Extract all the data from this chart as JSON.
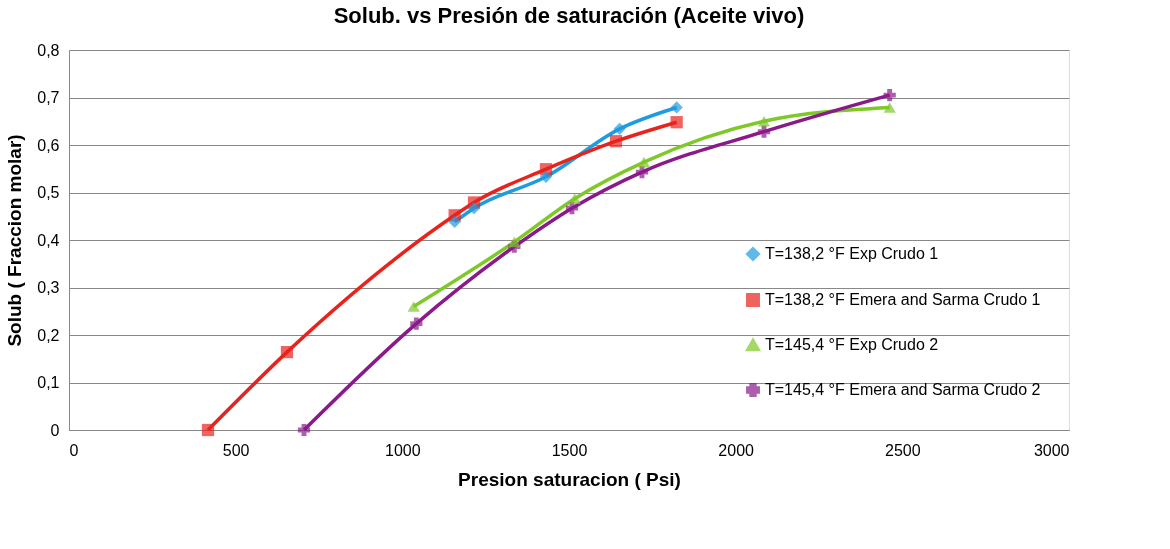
{
  "chart_data": {
    "type": "line",
    "title": "Solub. vs Presión de saturación (Aceite vivo)",
    "xlabel": "Presion  saturacion ( Psi)",
    "ylabel": "Solub ( Fraccion molar)",
    "xlim": [
      0,
      3000
    ],
    "xticks": [
      0,
      500,
      1000,
      1500,
      2000,
      2500,
      3000
    ],
    "ylim": [
      0,
      0.8
    ],
    "yticks": [
      {
        "value": 0,
        "label": "0"
      },
      {
        "value": 0.1,
        "label": "0,1"
      },
      {
        "value": 0.2,
        "label": "0,2"
      },
      {
        "value": 0.3,
        "label": "0,3"
      },
      {
        "value": 0.4,
        "label": "0,4"
      },
      {
        "value": 0.5,
        "label": "0,5"
      },
      {
        "value": 0.6,
        "label": "0,6"
      },
      {
        "value": 0.7,
        "label": "0,7"
      },
      {
        "value": 0.8,
        "label": "0,8"
      }
    ],
    "grid": "y",
    "legend": "right",
    "line_style": "solid",
    "series": [
      {
        "name": "T=138,2 °F Exp Crudo 1",
        "color": "#1f9be0",
        "marker": "diamond",
        "x": [
          1157,
          1215,
          1431,
          1652,
          1823
        ],
        "values": [
          0.438,
          0.467,
          0.533,
          0.634,
          0.679
        ]
      },
      {
        "name": "T=138,2 °F Emera and Sarma Crudo 1",
        "color": "#e8221c",
        "marker": "square",
        "x": [
          417,
          654,
          1157,
          1215,
          1431,
          1641,
          1823
        ],
        "values": [
          0,
          0.164,
          0.452,
          0.479,
          0.549,
          0.608,
          0.648
        ]
      },
      {
        "name": "T=145,4 °F Exp Crudo 2",
        "color": "#7ec828",
        "marker": "triangle",
        "x": [
          1034,
          1336,
          1517,
          1725,
          2085,
          2462
        ],
        "values": [
          0.26,
          0.396,
          0.487,
          0.564,
          0.65,
          0.679
        ]
      },
      {
        "name": "T=145,4 °F Emera and Sarma Crudo 2",
        "color": "#8a1a8a",
        "marker": "cross",
        "x": [
          705,
          1042,
          1336,
          1509,
          1719,
          2085,
          2462
        ],
        "values": [
          0,
          0.224,
          0.386,
          0.467,
          0.543,
          0.628,
          0.705
        ]
      }
    ]
  }
}
